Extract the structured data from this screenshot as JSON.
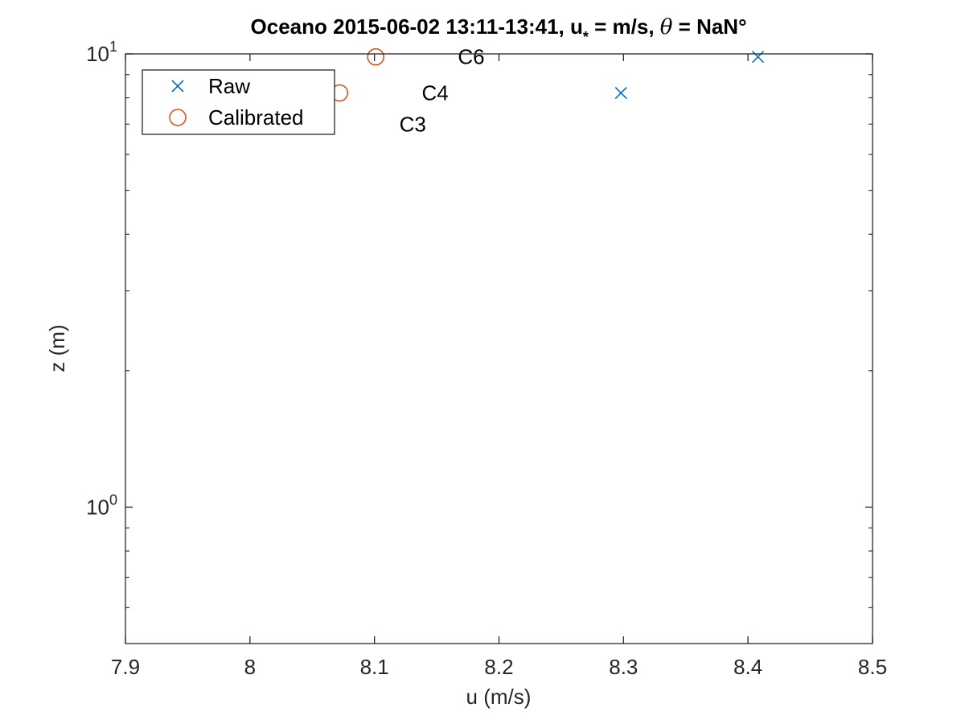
{
  "chart_data": {
    "type": "scatter",
    "title": {
      "prefix": "Oceano 2015-06-02 13:11-13:41, u",
      "subscript": "*",
      "middle": " =  m/s, ",
      "theta": "θ",
      "suffix": " = NaN°"
    },
    "xlabel": "u (m/s)",
    "ylabel": "z (m)",
    "xlim": [
      7.9,
      8.5
    ],
    "ylim": [
      0.5,
      10
    ],
    "yscale": "log",
    "xticks": [
      7.9,
      8.0,
      8.1,
      8.2,
      8.3,
      8.4,
      8.5
    ],
    "xtick_labels": [
      "7.9",
      "8",
      "8.1",
      "8.2",
      "8.3",
      "8.4",
      "8.5"
    ],
    "yticks_major": [
      1,
      10
    ],
    "ytick_labels": [
      {
        "base": "10",
        "exp": "0"
      },
      {
        "base": "10",
        "exp": "1"
      }
    ],
    "yticks_minor": [
      0.6,
      0.7,
      0.8,
      0.9,
      2,
      3,
      4,
      5,
      6,
      7,
      8,
      9
    ],
    "grid": false,
    "legend": {
      "position": "top-left",
      "entries": [
        {
          "name": "Raw",
          "marker": "x",
          "color": "#0072BD"
        },
        {
          "name": "Calibrated",
          "marker": "o",
          "color": "#D95319"
        }
      ]
    },
    "series": [
      {
        "name": "Raw",
        "marker": "x",
        "color": "#0072BD",
        "points": [
          {
            "x": 8.298,
            "z": 8.2
          },
          {
            "x": 8.408,
            "z": 9.85
          }
        ]
      },
      {
        "name": "Calibrated",
        "marker": "o",
        "color": "#D95319",
        "points": [
          {
            "x": 8.055,
            "z": 6.99
          },
          {
            "x": 8.072,
            "z": 8.2
          },
          {
            "x": 8.101,
            "z": 9.85
          }
        ]
      }
    ],
    "annotations": [
      {
        "text": "C3",
        "x": 8.12,
        "z": 6.99
      },
      {
        "text": "C4",
        "x": 8.138,
        "z": 8.2
      },
      {
        "text": "C6",
        "x": 8.167,
        "z": 9.85
      }
    ]
  }
}
